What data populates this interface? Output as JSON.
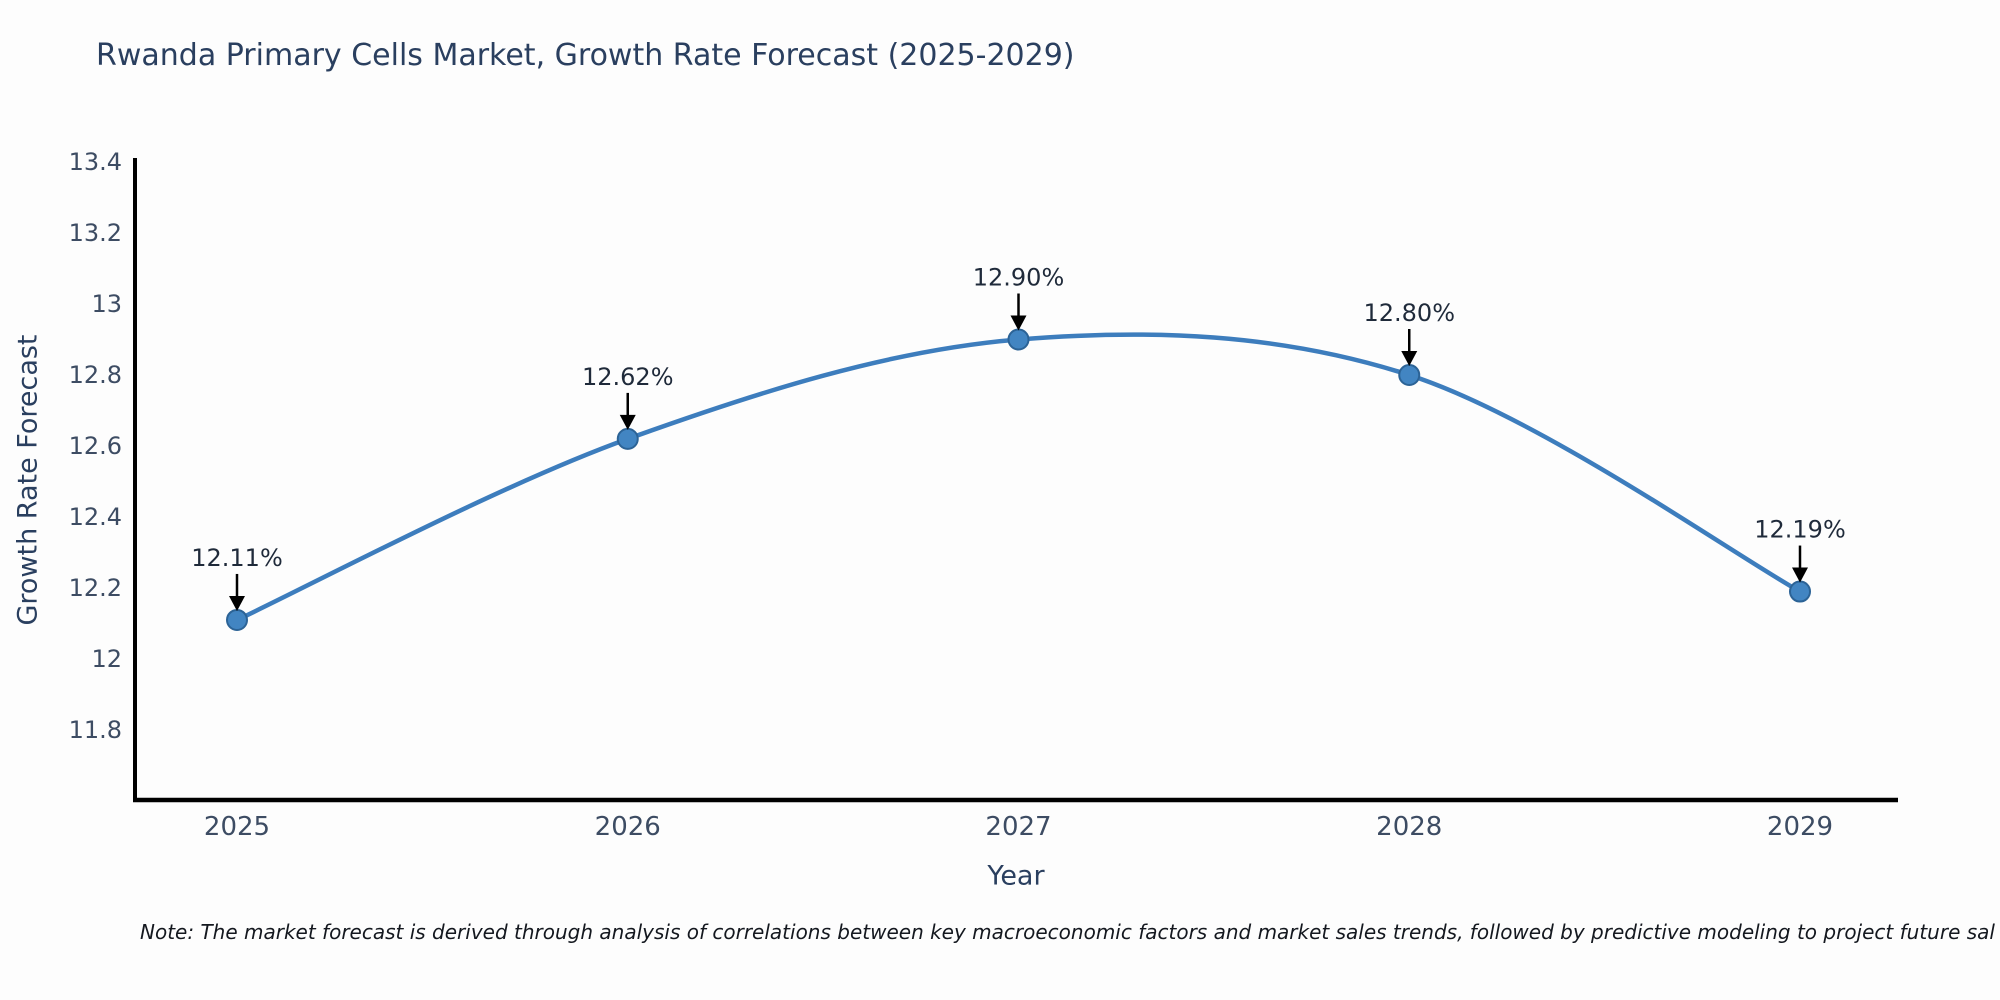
{
  "title": "Rwanda Primary Cells Market, Growth Rate Forecast (2025-2029)",
  "note": "Note: The market forecast is derived through analysis of correlations between key macroeconomic factors and market sales trends, followed by predictive modeling to project future sal",
  "chart_data": {
    "type": "line",
    "line_shape": "spline",
    "x": [
      2025,
      2026,
      2027,
      2028,
      2029
    ],
    "x_tick_labels": [
      "2025",
      "2026",
      "2027",
      "2028",
      "2029"
    ],
    "series": [
      {
        "name": "Growth Rate Forecast",
        "values": [
          12.11,
          12.62,
          12.9,
          12.8,
          12.19
        ],
        "point_labels": [
          "12.11%",
          "12.62%",
          "12.90%",
          "12.80%",
          "12.19%"
        ]
      }
    ],
    "xlabel": "Year",
    "ylabel": "Growth Rate Forecast",
    "y_ticks": [
      13.4,
      13.2,
      13,
      12.8,
      12.6,
      12.4,
      12.2,
      12,
      11.8
    ],
    "ylim": [
      11.6,
      13.41
    ],
    "grid": false,
    "legend": "none",
    "annotations_have_arrows": true,
    "colors": {
      "line": "#3d7dbd",
      "marker_fill": "#4285c2",
      "marker_border": "#2c6396",
      "axis_line": "#000000",
      "title_text": "#2a3f5f",
      "tick_text": "#3d4c63",
      "annotation_text": "#1f2a3a",
      "annotation_arrow": "#000000",
      "background": "#fdfdfd"
    }
  }
}
